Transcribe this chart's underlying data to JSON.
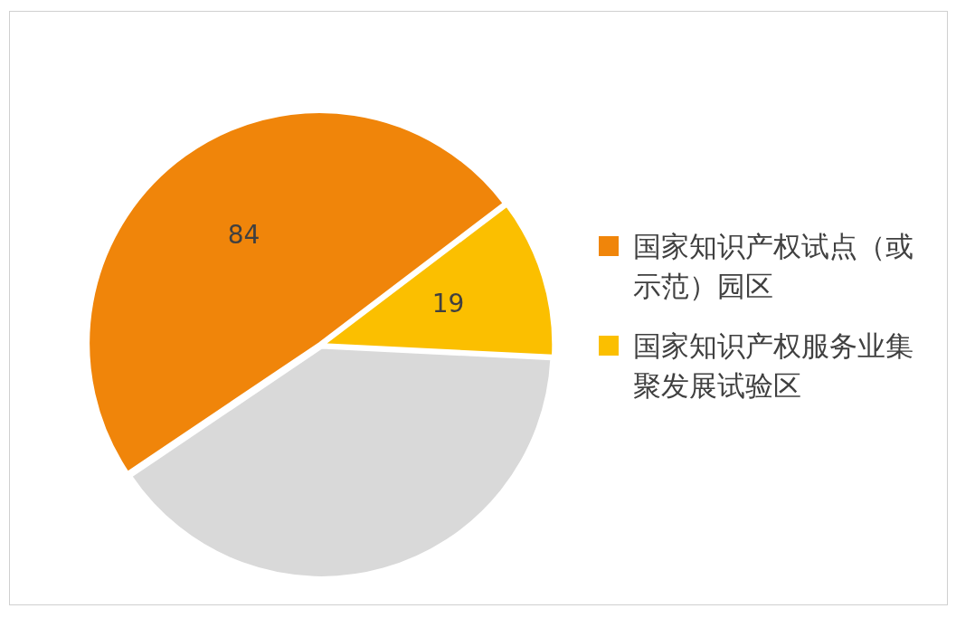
{
  "chart_data": {
    "type": "pie",
    "categories": [
      "国家知识产权试点（或示范）园区",
      "国家知识产权服务业集聚发展试验区",
      null
    ],
    "values": [
      84,
      19,
      68
    ],
    "colors": [
      "#f0850a",
      "#fbbf00",
      "#d9d9d9"
    ],
    "value_labels": [
      "84",
      "19",
      null
    ],
    "legend": "right"
  }
}
